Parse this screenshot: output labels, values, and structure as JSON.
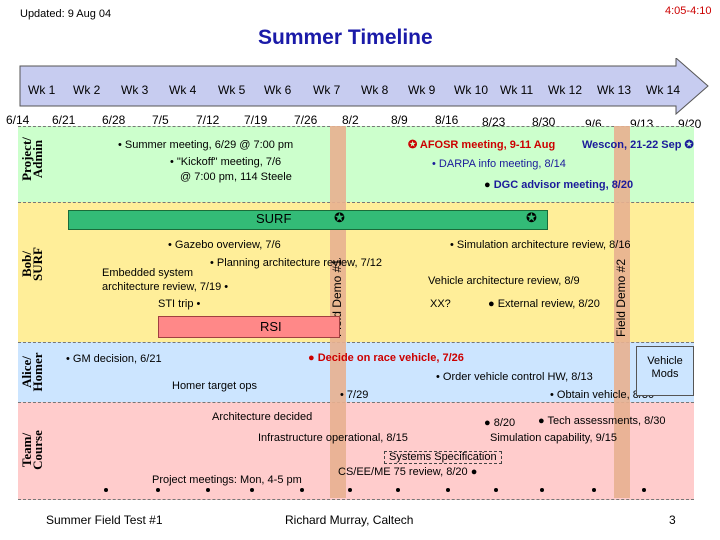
{
  "header": {
    "updated": "Updated: 9 Aug 04",
    "time": "4:05-4:10",
    "title": "Summer Timeline"
  },
  "weeks": [
    "Wk 1",
    "Wk 2",
    "Wk 3",
    "Wk 4",
    "Wk 5",
    "Wk 6",
    "Wk 7",
    "Wk 8",
    "Wk 9",
    "Wk 10",
    "Wk 11",
    "Wk 12",
    "Wk 13",
    "Wk 14"
  ],
  "dates": [
    "6/14",
    "6/21",
    "6/28",
    "7/5",
    "7/12",
    "7/19",
    "7/26",
    "8/2",
    "8/9",
    "8/16",
    "8/23",
    "8/30",
    "9/6",
    "9/13",
    "9/20"
  ],
  "rows": {
    "project_admin": "Project/ Admin",
    "bob_surf": "Bob/ SURF",
    "alice_homer": "Alice/ Homer",
    "team_course": "Team/ Course"
  },
  "colors": {
    "admin": "#ccffcc",
    "surf": "#ffee99",
    "homer": "#cce5ff",
    "team": "#ffcccc",
    "surf_bar": "#33bb77",
    "rsi_bar": "#ff8888",
    "demo": "#e8b090",
    "timeline": "#c7ccf0"
  },
  "demos": {
    "demo1": "Field Demo #1",
    "demo2": "Field Demo #2"
  },
  "admin": {
    "summer_meeting": "• Summer meeting, 6/29 @ 7:00 pm",
    "kickoff_1": "• \"Kickoff\" meeting, 7/6",
    "kickoff_2": "@ 7:00 pm, 114 Steele",
    "afosr": "AFOSR meeting, 9-11 Aug",
    "wescon": "Wescon, 21-22 Sep",
    "darpa": "• DARPA info meeting, 8/14",
    "dgc": "DGC advisor meeting, 8/20"
  },
  "surf": {
    "surf_label": "SURF",
    "rsi_label": "RSI",
    "gazebo": "• Gazebo overview, 7/6",
    "planning": "• Planning architecture review, 7/12",
    "embedded_1": "Embedded system",
    "embedded_2": "architecture review, 7/19 •",
    "sti": "STI trip •",
    "simulation": "• Simulation architecture review, 8/16",
    "vehicle_arch": "Vehicle architecture review, 8/9",
    "xx": "XX?",
    "external": "External review, 8/20"
  },
  "homer": {
    "gm": "• GM decision, 6/21",
    "homer_target": "Homer target ops",
    "decide": "Decide on race vehicle, 7/26",
    "order": "• Order vehicle control HW, 8/13",
    "obtain": "• Obtain vehicle, 8/30",
    "date_729": "• 7/29",
    "vehicle_mods": "Vehicle Mods"
  },
  "team": {
    "arch_decided": "Architecture decided",
    "date_820": "8/20",
    "tech": "Tech assessments, 8/30",
    "infra": "Infrastructure operational, 8/15",
    "sim_cap": "Simulation capability, 9/15",
    "sys_spec": "Systems Specification",
    "cs_ee": "CS/EE/ME 75 review, 8/20",
    "proj_meetings": "Project meetings: Mon, 4-5 pm"
  },
  "footer": {
    "left": "Summer Field Test #1",
    "center": "Richard Murray, Caltech",
    "page": "3"
  }
}
